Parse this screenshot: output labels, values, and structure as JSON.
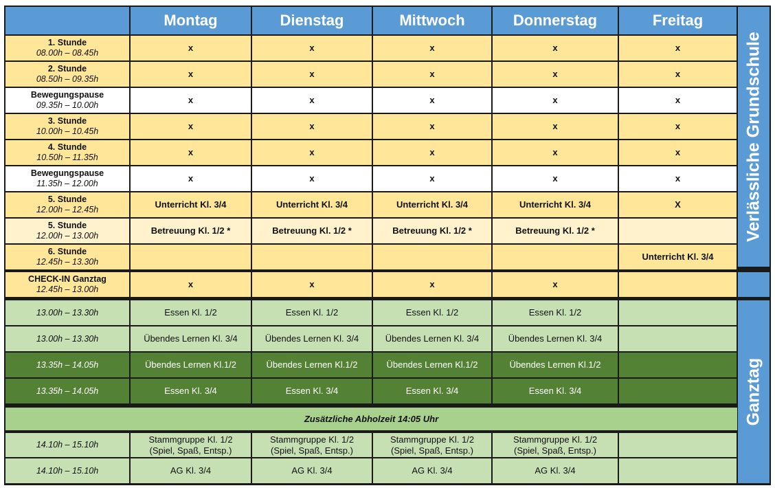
{
  "table": {
    "days": [
      "Montag",
      "Dienstag",
      "Mittwoch",
      "Donnerstag",
      "Freitag"
    ],
    "side_labels": {
      "top": "Verlässliche Grundschule",
      "bottom": "Ganztag"
    },
    "banner": "Zusätzliche Abholzeit 14:05 Uhr",
    "colors": {
      "header_blue": "#5b9bd5",
      "lesson_yellow": "#ffe699",
      "break_white": "#ffffff",
      "care_light_yellow": "#fff2cc",
      "ganztag_light_green": "#c6e0b4",
      "ganztag_dark_green": "#548235",
      "banner_green": "#a9d18e"
    },
    "rows": [
      {
        "label": "1. Stunde",
        "time": "08.00h – 08.45h",
        "color": "#ffe699",
        "text": "#111111",
        "bold": true,
        "cells": [
          "x",
          "x",
          "x",
          "x",
          "x"
        ]
      },
      {
        "label": "2. Stunde",
        "time": "08.50h – 09.35h",
        "color": "#ffe699",
        "text": "#111111",
        "bold": true,
        "cells": [
          "x",
          "x",
          "x",
          "x",
          "x"
        ]
      },
      {
        "label": "Bewegungspause",
        "time": "09.35h – 10.00h",
        "color": "#ffffff",
        "text": "#111111",
        "bold": true,
        "cells": [
          "x",
          "x",
          "x",
          "x",
          "x"
        ]
      },
      {
        "label": "3. Stunde",
        "time": "10.00h – 10.45h",
        "color": "#ffe699",
        "text": "#111111",
        "bold": true,
        "cells": [
          "x",
          "x",
          "x",
          "x",
          "x"
        ]
      },
      {
        "label": "4. Stunde",
        "time": "10.50h – 11.35h",
        "color": "#ffe699",
        "text": "#111111",
        "bold": true,
        "cells": [
          "x",
          "x",
          "x",
          "x",
          "x"
        ]
      },
      {
        "label": "Bewegungspause",
        "time": "11.35h – 12.00h",
        "color": "#ffffff",
        "text": "#111111",
        "bold": true,
        "cells": [
          "x",
          "x",
          "x",
          "x",
          "x"
        ]
      },
      {
        "label": "5. Stunde",
        "time": "12.00h – 12.45h",
        "color": "#ffe699",
        "text": "#111111",
        "bold": true,
        "cells": [
          "Unterricht Kl. 3/4",
          "Unterricht Kl. 3/4",
          "Unterricht Kl. 3/4",
          "Unterricht Kl. 3/4",
          "X"
        ]
      },
      {
        "label": "5. Stunde",
        "time": "12.00h – 13.00h",
        "color": "#fff2cc",
        "text": "#111111",
        "bold": true,
        "cells": [
          "Betreuung Kl. 1/2 *",
          "Betreuung Kl. 1/2 *",
          "Betreuung Kl. 1/2 *",
          "Betreuung Kl. 1/2 *",
          ""
        ]
      },
      {
        "label": "6. Stunde",
        "time": "12.45h – 13.30h",
        "color": "#ffe699",
        "text": "#111111",
        "bold": true,
        "cells": [
          "",
          "",
          "",
          "",
          "Unterricht Kl. 3/4"
        ]
      },
      {
        "label": "CHECK-IN Ganztag",
        "time": "12.45h – 13.00h",
        "color": "#ffe699",
        "text": "#111111",
        "bold": true,
        "cells": [
          "x",
          "x",
          "x",
          "x",
          ""
        ]
      },
      {
        "label": "",
        "time": "13.00h – 13.30h",
        "color": "#c6e0b4",
        "text": "#111111",
        "bold": false,
        "cells": [
          "Essen Kl. 1/2",
          "Essen Kl. 1/2",
          "Essen Kl. 1/2",
          "Essen Kl. 1/2",
          ""
        ]
      },
      {
        "label": "",
        "time": "13.00h – 13.30h",
        "color": "#c6e0b4",
        "text": "#111111",
        "bold": false,
        "cells": [
          "Übendes Lernen Kl. 3/4",
          "Übendes Lernen Kl. 3/4",
          "Übendes Lernen Kl. 3/4",
          "Übendes Lernen Kl. 3/4",
          ""
        ]
      },
      {
        "label": "",
        "time": "13.35h – 14.05h",
        "color": "#548235",
        "text": "#ffffff",
        "bold": false,
        "cells": [
          "Übendes Lernen Kl.1/2",
          "Übendes Lernen Kl.1/2",
          "Übendes Lernen Kl.1/2",
          "Übendes Lernen Kl.1/2",
          ""
        ]
      },
      {
        "label": "",
        "time": "13.35h – 14.05h",
        "color": "#548235",
        "text": "#ffffff",
        "bold": false,
        "cells": [
          "Essen Kl. 3/4",
          "Essen Kl. 3/4",
          "Essen Kl. 3/4",
          "Essen Kl. 3/4",
          ""
        ]
      },
      {
        "label": "",
        "time": "14.10h – 15.10h",
        "color": "#c6e0b4",
        "text": "#111111",
        "bold": false,
        "cells": [
          "Stammgruppe Kl. 1/2\n(Spiel, Spaß, Entsp.)",
          "Stammgruppe Kl. 1/2\n(Spiel, Spaß, Entsp.)",
          "Stammgruppe Kl. 1/2\n(Spiel, Spaß, Entsp.)",
          "Stammgruppe Kl. 1/2\n(Spiel, Spaß, Entsp.)",
          ""
        ]
      },
      {
        "label": "",
        "time": "14.10h – 15.10h",
        "color": "#c6e0b4",
        "text": "#111111",
        "bold": false,
        "cells": [
          "AG Kl. 3/4",
          "AG Kl. 3/4",
          "AG Kl. 3/4",
          "AG Kl. 3/4",
          ""
        ]
      }
    ]
  }
}
